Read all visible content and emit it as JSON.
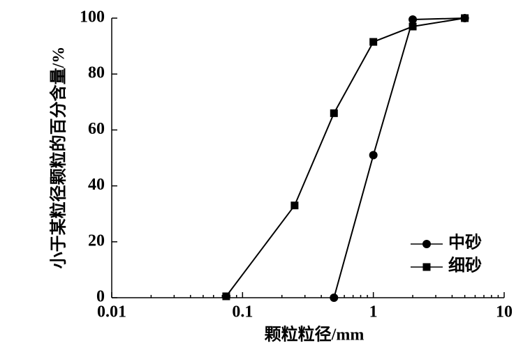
{
  "chart_data": {
    "type": "line",
    "xlabel": "颗粒粒径/mm",
    "ylabel": "小于某粒径颗粒的百分含量/%",
    "xscale": "log",
    "xlim": [
      0.01,
      10
    ],
    "xticks": [
      0.01,
      0.1,
      1,
      10
    ],
    "xminorticks": [
      0.02,
      0.03,
      0.04,
      0.05,
      0.06,
      0.07,
      0.08,
      0.09,
      0.2,
      0.3,
      0.4,
      0.5,
      0.6,
      0.7,
      0.8,
      0.9,
      2,
      3,
      4,
      5,
      6,
      7,
      8,
      9
    ],
    "ylim": [
      0,
      100
    ],
    "yticks": [
      0,
      20,
      40,
      60,
      80,
      100
    ],
    "legend": "lower right",
    "series": [
      {
        "name": "中砂",
        "color": "#000000",
        "marker": "circle",
        "x": [
          0.5,
          1,
          2,
          5
        ],
        "values": [
          0,
          51,
          99.5,
          100
        ]
      },
      {
        "name": "细砂",
        "color": "#000000",
        "marker": "square",
        "x": [
          0.075,
          0.25,
          0.5,
          1,
          2,
          5
        ],
        "values": [
          0.5,
          33,
          66,
          91.5,
          97,
          100
        ]
      }
    ]
  }
}
